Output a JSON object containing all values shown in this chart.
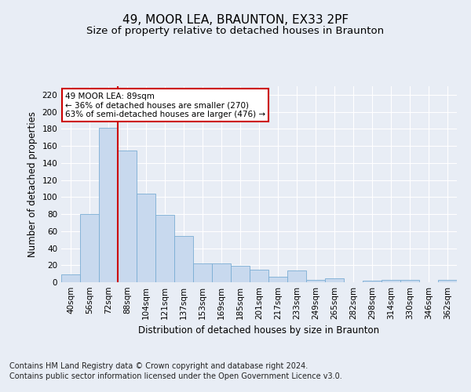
{
  "title": "49, MOOR LEA, BRAUNTON, EX33 2PF",
  "subtitle": "Size of property relative to detached houses in Braunton",
  "xlabel": "Distribution of detached houses by size in Braunton",
  "ylabel": "Number of detached properties",
  "footnote1": "Contains HM Land Registry data © Crown copyright and database right 2024.",
  "footnote2": "Contains public sector information licensed under the Open Government Licence v3.0.",
  "categories": [
    "40sqm",
    "56sqm",
    "72sqm",
    "88sqm",
    "104sqm",
    "121sqm",
    "137sqm",
    "153sqm",
    "169sqm",
    "185sqm",
    "201sqm",
    "217sqm",
    "233sqm",
    "249sqm",
    "265sqm",
    "282sqm",
    "298sqm",
    "314sqm",
    "330sqm",
    "346sqm",
    "362sqm"
  ],
  "values": [
    9,
    80,
    181,
    155,
    104,
    79,
    54,
    22,
    22,
    19,
    15,
    6,
    14,
    3,
    5,
    0,
    2,
    3,
    3,
    0,
    3
  ],
  "bar_color": "#c8d9ee",
  "bar_edge_color": "#7aadd4",
  "vline_x": 2.5,
  "vline_color": "#cc0000",
  "annotation_text": "49 MOOR LEA: 89sqm\n← 36% of detached houses are smaller (270)\n63% of semi-detached houses are larger (476) →",
  "annotation_box_color": "#ffffff",
  "annotation_box_edge": "#cc0000",
  "ylim": [
    0,
    230
  ],
  "yticks": [
    0,
    20,
    40,
    60,
    80,
    100,
    120,
    140,
    160,
    180,
    200,
    220
  ],
  "background_color": "#e8edf5",
  "plot_background": "#e8edf5",
  "grid_color": "#ffffff",
  "title_fontsize": 11,
  "subtitle_fontsize": 9.5,
  "axis_label_fontsize": 8.5,
  "tick_fontsize": 7.5,
  "footnote_fontsize": 7
}
